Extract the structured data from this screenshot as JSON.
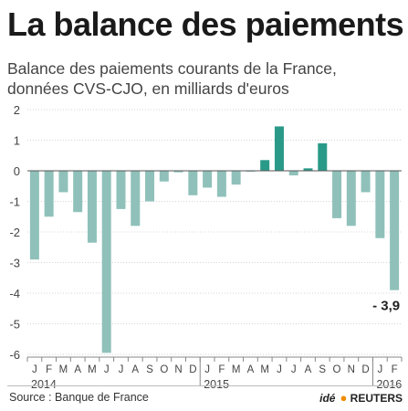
{
  "header": {
    "title": "La balance des paiements",
    "subtitle": "Balance des paiements courants de la France, données CVS-CJO, en milliards d'euros"
  },
  "footer": {
    "source": "Source : Banque de France",
    "credit_ide": "idé",
    "credit_reuters": "REUTERS"
  },
  "colors": {
    "negative": "#8fc1ba",
    "positive": "#2a9a88",
    "axis": "#888888",
    "grid": "#d4d4d4"
  },
  "chart_data": {
    "type": "bar",
    "categories": [
      "J",
      "F",
      "M",
      "A",
      "M",
      "J",
      "J",
      "A",
      "S",
      "O",
      "N",
      "D",
      "J",
      "F",
      "M",
      "A",
      "M",
      "J",
      "J",
      "A",
      "S",
      "O",
      "N",
      "D",
      "J",
      "F"
    ],
    "year_labels": [
      {
        "label": "2014",
        "start_index": 0
      },
      {
        "label": "2015",
        "start_index": 12
      },
      {
        "label": "2016",
        "start_index": 24
      }
    ],
    "values": [
      -2.9,
      -1.5,
      -0.7,
      -1.35,
      -2.35,
      -5.95,
      -1.25,
      -1.8,
      -1.0,
      -0.35,
      -0.05,
      -0.8,
      -0.55,
      -0.85,
      -0.45,
      0.0,
      0.35,
      1.45,
      -0.15,
      0.08,
      0.9,
      -1.55,
      -1.8,
      -0.7,
      -2.2,
      -3.9
    ],
    "annotation": {
      "index": 25,
      "text": "- 3,9"
    },
    "ylim": [
      -6,
      2
    ],
    "yticks": [
      2,
      1,
      0,
      -1,
      -2,
      -3,
      -4,
      -5,
      -6
    ],
    "grid": true,
    "xlabel": "",
    "ylabel": ""
  }
}
